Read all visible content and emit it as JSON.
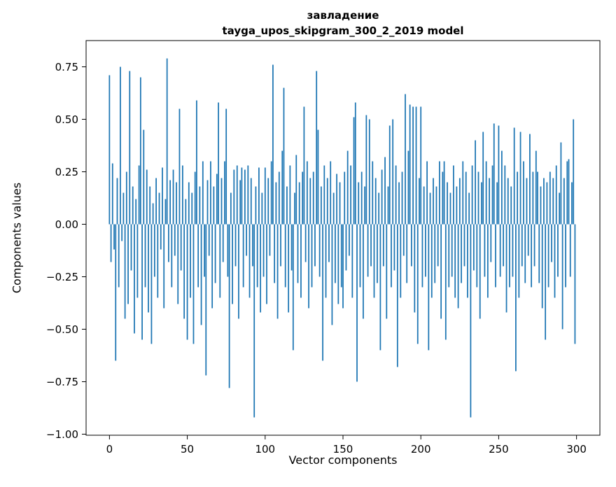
{
  "chart_data": {
    "type": "bar",
    "title": "завладение",
    "subtitle": "tayga_upos_skipgram_300_2_2019 model",
    "xlabel": "Vector components",
    "ylabel": "Components values",
    "bar_color": "#1f77b4",
    "bar_width": 0.8,
    "grid": false,
    "legend": "none",
    "xlim": [
      -15,
      315
    ],
    "ylim": [
      -1.005,
      0.875
    ],
    "xticks": [
      0,
      50,
      100,
      150,
      200,
      250,
      300
    ],
    "xtick_labels": [
      "0",
      "50",
      "100",
      "150",
      "200",
      "250",
      "300"
    ],
    "yticks": [
      -1.0,
      -0.75,
      -0.5,
      -0.25,
      0.0,
      0.25,
      0.5,
      0.75
    ],
    "ytick_labels": [
      "−1.00",
      "−0.75",
      "−0.50",
      "−0.25",
      "0.00",
      "0.25",
      "0.50",
      "0.75"
    ],
    "values": [
      0.71,
      -0.18,
      0.29,
      -0.12,
      -0.65,
      0.22,
      -0.3,
      0.75,
      -0.08,
      0.15,
      -0.45,
      0.25,
      -0.38,
      0.73,
      -0.22,
      0.18,
      -0.52,
      0.12,
      -0.35,
      0.28,
      0.7,
      -0.55,
      0.45,
      -0.3,
      0.26,
      -0.42,
      0.18,
      -0.57,
      0.1,
      -0.25,
      0.22,
      -0.35,
      0.15,
      -0.12,
      0.27,
      -0.4,
      0.12,
      0.79,
      -0.18,
      0.21,
      -0.3,
      0.26,
      -0.15,
      0.2,
      -0.38,
      0.55,
      -0.22,
      0.28,
      -0.45,
      0.12,
      -0.55,
      0.2,
      -0.35,
      0.15,
      -0.57,
      0.25,
      0.59,
      -0.3,
      0.18,
      -0.48,
      0.3,
      -0.25,
      -0.72,
      0.21,
      -0.15,
      0.3,
      -0.4,
      0.18,
      -0.28,
      0.24,
      0.58,
      -0.35,
      0.22,
      -0.18,
      0.3,
      0.55,
      -0.25,
      -0.78,
      0.15,
      -0.38,
      0.26,
      -0.2,
      0.28,
      -0.45,
      0.21,
      0.27,
      -0.3,
      0.26,
      -0.15,
      0.28,
      -0.35,
      0.22,
      -0.2,
      -0.92,
      0.18,
      -0.3,
      0.27,
      -0.42,
      0.15,
      -0.25,
      0.27,
      -0.38,
      0.22,
      -0.15,
      0.3,
      0.76,
      -0.28,
      0.2,
      -0.45,
      0.25,
      -0.2,
      0.35,
      0.65,
      -0.3,
      0.18,
      -0.42,
      0.28,
      -0.22,
      -0.6,
      0.15,
      0.33,
      -0.28,
      0.2,
      -0.35,
      0.25,
      0.56,
      -0.18,
      0.3,
      -0.4,
      0.22,
      -0.3,
      0.25,
      -0.2,
      0.73,
      0.45,
      -0.25,
      0.18,
      -0.65,
      0.28,
      -0.35,
      0.22,
      -0.18,
      0.3,
      -0.48,
      0.15,
      -0.28,
      0.24,
      -0.38,
      0.2,
      -0.3,
      -0.4,
      0.25,
      -0.22,
      0.35,
      -0.15,
      0.28,
      -0.35,
      0.51,
      0.58,
      -0.75,
      0.2,
      -0.3,
      0.25,
      -0.45,
      0.18,
      0.52,
      -0.25,
      0.5,
      -0.2,
      0.3,
      -0.35,
      0.22,
      -0.28,
      0.15,
      -0.6,
      0.26,
      -0.2,
      0.32,
      -0.45,
      0.18,
      0.47,
      -0.3,
      0.5,
      -0.22,
      0.28,
      -0.68,
      0.2,
      -0.35,
      0.25,
      -0.15,
      0.62,
      -0.28,
      0.35,
      0.57,
      -0.2,
      0.56,
      -0.42,
      0.56,
      -0.57,
      0.22,
      0.56,
      -0.3,
      0.18,
      -0.25,
      0.3,
      -0.6,
      0.15,
      -0.35,
      0.22,
      -0.28,
      0.18,
      -0.2,
      0.3,
      -0.45,
      0.25,
      0.3,
      -0.55,
      0.2,
      -0.3,
      0.15,
      -0.25,
      0.28,
      -0.35,
      0.18,
      -0.4,
      0.22,
      -0.28,
      0.3,
      -0.2,
      0.25,
      -0.35,
      0.15,
      -0.92,
      0.28,
      -0.22,
      0.4,
      -0.3,
      0.25,
      -0.45,
      0.2,
      0.44,
      -0.25,
      0.3,
      -0.35,
      0.22,
      -0.18,
      0.28,
      0.48,
      -0.3,
      0.2,
      0.47,
      -0.25,
      0.35,
      -0.2,
      0.28,
      -0.42,
      0.22,
      -0.3,
      0.18,
      -0.25,
      0.46,
      -0.7,
      0.25,
      -0.35,
      0.44,
      -0.2,
      0.3,
      -0.28,
      0.22,
      -0.15,
      0.43,
      -0.3,
      0.25,
      -0.2,
      0.35,
      0.25,
      -0.28,
      0.18,
      -0.4,
      0.22,
      -0.55,
      0.2,
      -0.3,
      0.25,
      -0.18,
      0.22,
      -0.35,
      0.28,
      -0.25,
      0.15,
      0.39,
      -0.5,
      0.22,
      -0.3,
      0.3,
      0.31,
      -0.25,
      0.2,
      0.5,
      -0.57
    ]
  }
}
